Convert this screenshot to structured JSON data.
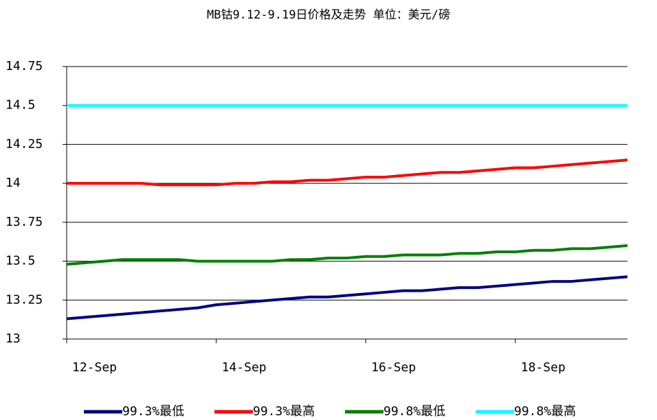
{
  "chart_data": {
    "type": "line",
    "title": "MB钴9.12-9.19日价格及走势 单位：美元/磅",
    "categories": [
      "12-Sep",
      null,
      null,
      null,
      null,
      null,
      null,
      null,
      "14-Sep",
      null,
      null,
      null,
      null,
      null,
      null,
      null,
      "16-Sep",
      null,
      null,
      null,
      null,
      null,
      null,
      null,
      "18-Sep",
      null,
      null,
      null,
      null,
      null,
      null
    ],
    "series": [
      {
        "name": "99.3%最低",
        "color": "#000080",
        "values": [
          13.13,
          13.14,
          13.15,
          13.16,
          13.17,
          13.18,
          13.19,
          13.2,
          13.22,
          13.23,
          13.24,
          13.25,
          13.26,
          13.27,
          13.27,
          13.28,
          13.29,
          13.3,
          13.31,
          13.31,
          13.32,
          13.33,
          13.33,
          13.34,
          13.35,
          13.36,
          13.37,
          13.37,
          13.38,
          13.39,
          13.4
        ]
      },
      {
        "name": "99.3%最高",
        "color": "#ff0000",
        "values": [
          14,
          14,
          14,
          14,
          14,
          13.99,
          13.99,
          13.99,
          13.99,
          14,
          14,
          14.01,
          14.01,
          14.02,
          14.02,
          14.03,
          14.04,
          14.04,
          14.05,
          14.06,
          14.07,
          14.07,
          14.08,
          14.09,
          14.1,
          14.1,
          14.11,
          14.12,
          14.13,
          14.14,
          14.15
        ]
      },
      {
        "name": "99.8%最低",
        "color": "#008000",
        "values": [
          13.48,
          13.49,
          13.5,
          13.51,
          13.51,
          13.51,
          13.51,
          13.5,
          13.5,
          13.5,
          13.5,
          13.5,
          13.51,
          13.51,
          13.52,
          13.52,
          13.53,
          13.53,
          13.54,
          13.54,
          13.54,
          13.55,
          13.55,
          13.56,
          13.56,
          13.57,
          13.57,
          13.58,
          13.58,
          13.59,
          13.6
        ]
      },
      {
        "name": "99.8%最高",
        "color": "#00ffff",
        "values": [
          14.5,
          14.5,
          14.5,
          14.5,
          14.5,
          14.5,
          14.5,
          14.5,
          14.5,
          14.5,
          14.5,
          14.5,
          14.5,
          14.5,
          14.5,
          14.5,
          14.5,
          14.5,
          14.5,
          14.5,
          14.5,
          14.5,
          14.5,
          14.5,
          14.5,
          14.5,
          14.5,
          14.5,
          14.5,
          14.5,
          14.5
        ]
      }
    ],
    "ylim": [
      13,
      14.75
    ],
    "yticks": [
      13,
      13.25,
      13.5,
      13.75,
      14,
      14.25,
      14.5,
      14.75
    ],
    "grid": true,
    "legend": "bottom"
  }
}
